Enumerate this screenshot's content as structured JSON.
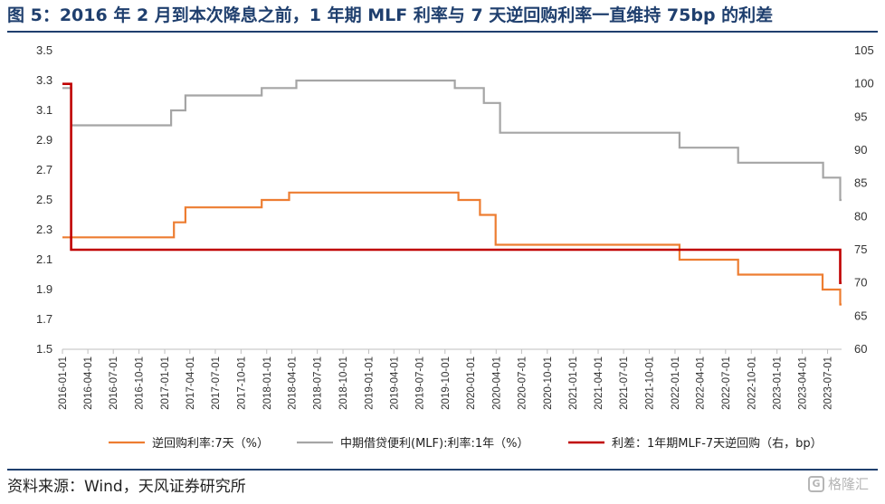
{
  "title": "图 5：2016 年 2 月到本次降息之前，1 年期 MLF 利率与 7 天逆回购利率一直维持 75bp 的利差",
  "source": "资料来源：Wind，天风证券研究所",
  "watermark": "格隆汇",
  "chart_data": {
    "type": "line",
    "title": "图 5：2016 年 2 月到本次降息之前，1 年期 MLF 利率与 7 天逆回购利率一直维持 75bp 的利差",
    "xlabel": "",
    "ylabel": "",
    "x_range": [
      "2016-01-01",
      "2023-08-20"
    ],
    "x_tick_labels": [
      "2016-01-01",
      "2016-04-01",
      "2016-07-01",
      "2016-10-01",
      "2017-01-01",
      "2017-04-01",
      "2017-07-01",
      "2017-10-01",
      "2018-01-01",
      "2018-04-01",
      "2018-07-01",
      "2018-10-01",
      "2019-01-01",
      "2019-04-01",
      "2019-07-01",
      "2019-10-01",
      "2020-01-01",
      "2020-04-01",
      "2020-07-01",
      "2020-10-01",
      "2021-01-01",
      "2021-04-01",
      "2021-07-01",
      "2021-10-01",
      "2022-01-01",
      "2022-04-01",
      "2022-07-01",
      "2022-10-01",
      "2023-01-01",
      "2023-04-01",
      "2023-07-01"
    ],
    "y_left": {
      "range": [
        1.5,
        3.5
      ],
      "ticks": [
        "1.5",
        "1.7",
        "1.9",
        "2.1",
        "2.3",
        "2.5",
        "2.7",
        "2.9",
        "3.1",
        "3.3",
        "3.5"
      ]
    },
    "y_right": {
      "range": [
        60,
        105
      ],
      "ticks": [
        "60",
        "65",
        "70",
        "75",
        "80",
        "85",
        "90",
        "95",
        "100",
        "105"
      ]
    },
    "grid": false,
    "legend_position": "bottom",
    "series": [
      {
        "name": "逆回购利率:7天（%）",
        "axis": "left",
        "color": "#ed7d31",
        "step": true,
        "points": [
          [
            "2016-01-01",
            2.25
          ],
          [
            "2017-02-03",
            2.35
          ],
          [
            "2017-03-16",
            2.45
          ],
          [
            "2017-12-14",
            2.5
          ],
          [
            "2018-03-22",
            2.55
          ],
          [
            "2019-11-18",
            2.5
          ],
          [
            "2020-02-03",
            2.4
          ],
          [
            "2020-03-30",
            2.2
          ],
          [
            "2022-01-17",
            2.1
          ],
          [
            "2022-08-15",
            2.0
          ],
          [
            "2023-06-13",
            1.9
          ],
          [
            "2023-08-15",
            1.8
          ],
          [
            "2023-08-20",
            1.8
          ]
        ]
      },
      {
        "name": "中期借贷便利(MLF):利率:1年（%）",
        "axis": "left",
        "color": "#a5a5a5",
        "step": true,
        "points": [
          [
            "2016-01-01",
            3.25
          ],
          [
            "2016-02-01",
            3.0
          ],
          [
            "2017-01-24",
            3.1
          ],
          [
            "2017-03-16",
            3.2
          ],
          [
            "2017-12-14",
            3.25
          ],
          [
            "2018-04-17",
            3.3
          ],
          [
            "2019-11-05",
            3.25
          ],
          [
            "2020-02-17",
            3.15
          ],
          [
            "2020-04-15",
            2.95
          ],
          [
            "2022-01-17",
            2.85
          ],
          [
            "2022-08-15",
            2.75
          ],
          [
            "2023-06-15",
            2.65
          ],
          [
            "2023-08-15",
            2.5
          ],
          [
            "2023-08-20",
            2.5
          ]
        ]
      },
      {
        "name": "利差：1年期MLF-7天逆回购（右，bp）",
        "axis": "right",
        "color": "#c00000",
        "step": true,
        "points": [
          [
            "2016-01-01",
            100
          ],
          [
            "2016-02-01",
            75
          ],
          [
            "2023-08-15",
            75
          ],
          [
            "2023-08-15",
            70
          ],
          [
            "2023-08-20",
            70
          ]
        ]
      }
    ]
  }
}
